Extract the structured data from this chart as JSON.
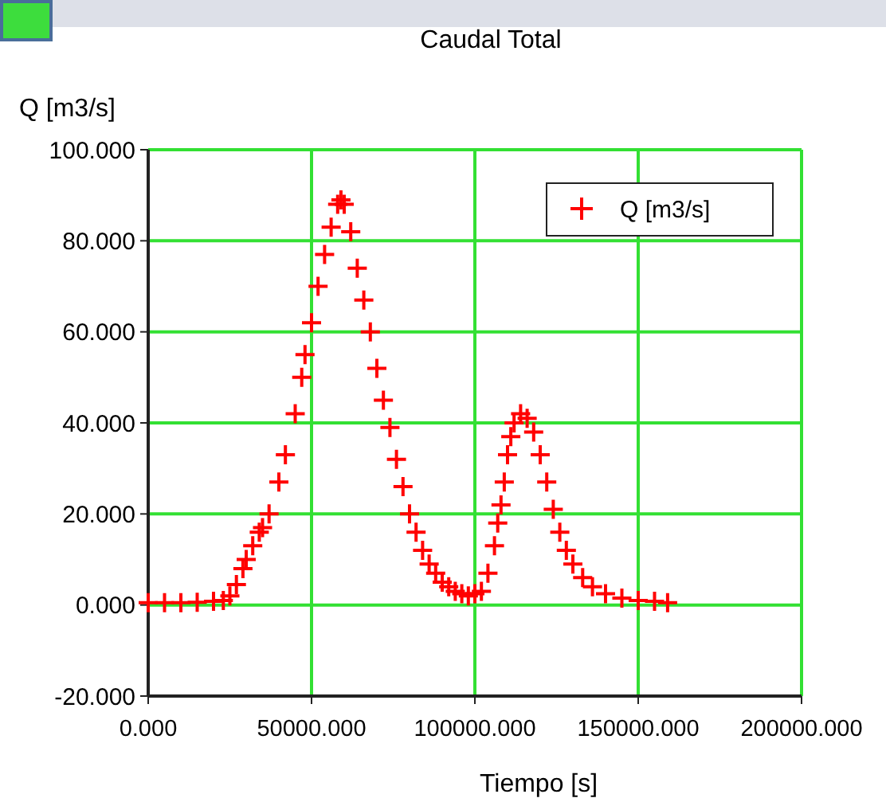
{
  "chart_data": {
    "type": "scatter",
    "title": "Caudal Total",
    "xlabel": "Tiempo [s]",
    "ylabel": "Q [m3/s]",
    "xlim": [
      0,
      200000
    ],
    "ylim": [
      -20,
      100
    ],
    "xticks": [
      {
        "value": 0,
        "label": "0.000"
      },
      {
        "value": 50000,
        "label": "50000.000"
      },
      {
        "value": 100000,
        "label": "100000.000"
      },
      {
        "value": 150000,
        "label": "150000.000"
      },
      {
        "value": 200000,
        "label": "200000.000"
      }
    ],
    "yticks": [
      {
        "value": -20,
        "label": "-20.000"
      },
      {
        "value": 0,
        "label": "0.000"
      },
      {
        "value": 20,
        "label": "20.000"
      },
      {
        "value": 40,
        "label": "40.000"
      },
      {
        "value": 60,
        "label": "60.000"
      },
      {
        "value": 80,
        "label": "80.000"
      },
      {
        "value": 100,
        "label": "100.000"
      }
    ],
    "grid": true,
    "legend": "top right",
    "marker": "cross",
    "series": [
      {
        "name": "Q [m3/s]",
        "color": "#ff0000",
        "x": [
          0,
          5000,
          10000,
          15000,
          20000,
          23000,
          25000,
          27000,
          29000,
          30000,
          32000,
          34000,
          35000,
          37000,
          40000,
          42000,
          45000,
          47000,
          48000,
          50000,
          52000,
          54000,
          56000,
          58000,
          59000,
          60000,
          62000,
          64000,
          66000,
          68000,
          70000,
          72000,
          74000,
          76000,
          78000,
          80000,
          82000,
          84000,
          86000,
          88000,
          90000,
          92000,
          94000,
          96000,
          98000,
          100000,
          102000,
          104000,
          106000,
          107000,
          108000,
          109000,
          110000,
          111000,
          112000,
          114000,
          116000,
          118000,
          120000,
          122000,
          124000,
          126000,
          128000,
          130000,
          133000,
          136000,
          140000,
          145000,
          150000,
          155000,
          159000
        ],
        "values": [
          0.5,
          0.5,
          0.5,
          0.6,
          0.8,
          1,
          2,
          4.5,
          8,
          10,
          13,
          16,
          17,
          20,
          27,
          33,
          42,
          50,
          55,
          62,
          70,
          77,
          83,
          88,
          89,
          88,
          82,
          74,
          67,
          60,
          52,
          45,
          39,
          32,
          26,
          20,
          16,
          12,
          9,
          7,
          5,
          4,
          3,
          2.5,
          2,
          2.5,
          3,
          7,
          13,
          18,
          22,
          27,
          33,
          37,
          40,
          42,
          41,
          38,
          33,
          27,
          21,
          16,
          12,
          9,
          6,
          4,
          2.5,
          1.5,
          1,
          0.8,
          0.5
        ]
      }
    ]
  }
}
